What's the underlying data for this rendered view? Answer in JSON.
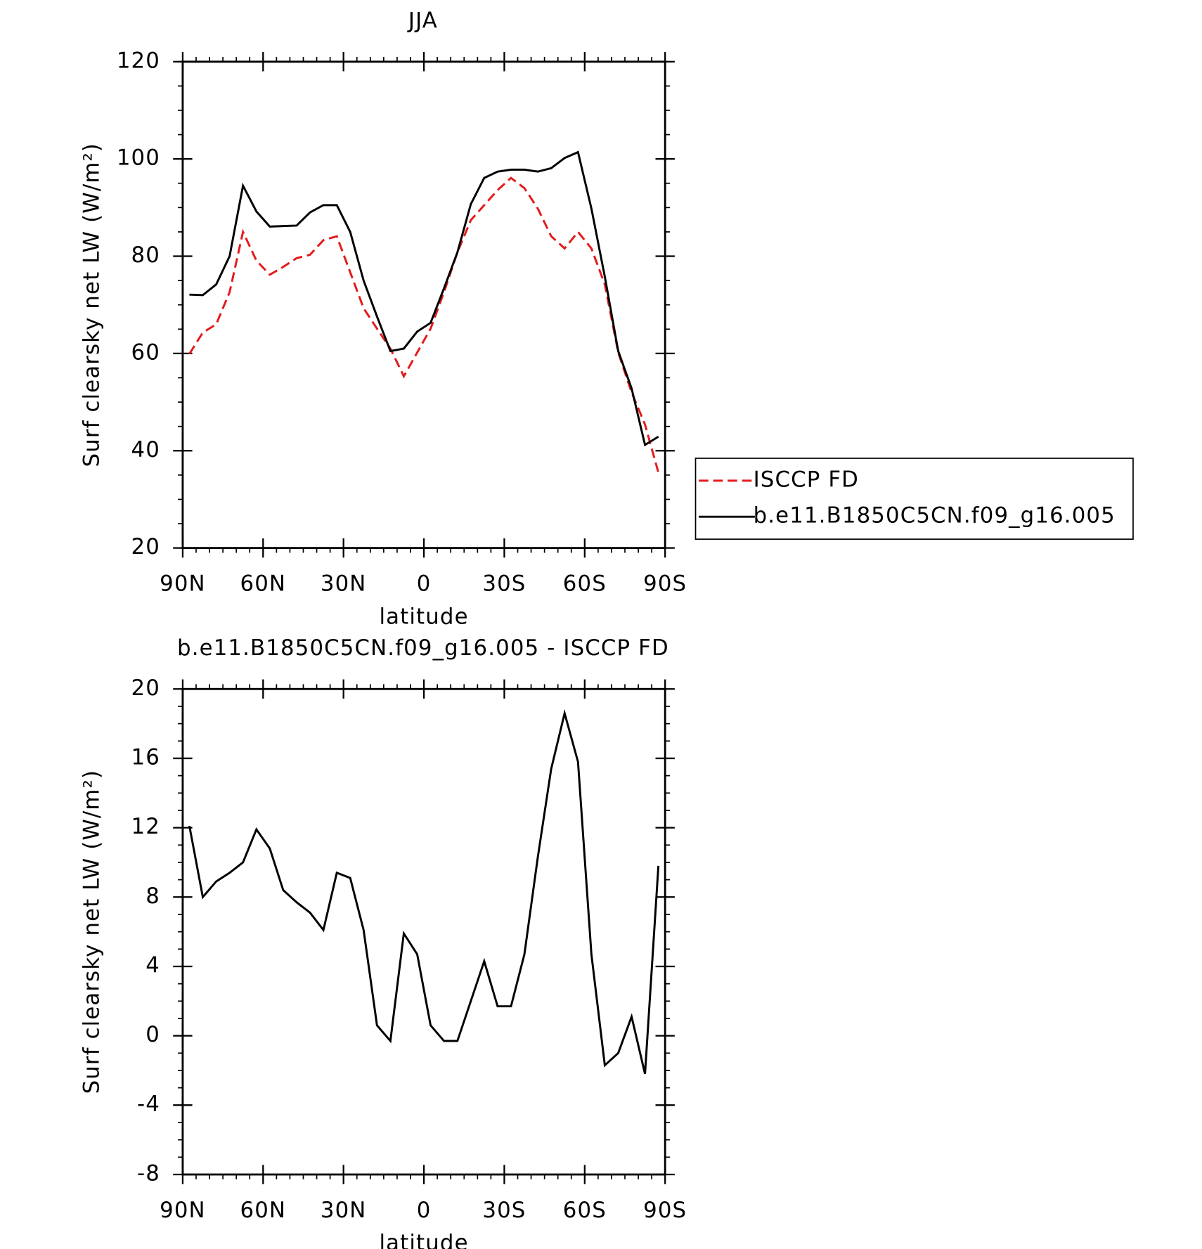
{
  "chart_data": [
    {
      "type": "line",
      "title": "JJA",
      "xlabel": "latitude",
      "ylabel": "Surf clearsky net LW (W/m²)",
      "x": [
        87.5,
        82.5,
        77.5,
        72.5,
        67.5,
        62.5,
        57.5,
        52.5,
        47.5,
        42.5,
        37.5,
        32.5,
        27.5,
        22.5,
        17.5,
        12.5,
        7.5,
        2.5,
        -2.5,
        -7.5,
        -12.5,
        -17.5,
        -22.5,
        -27.5,
        -32.5,
        -37.5,
        -42.5,
        -47.5,
        -52.5,
        -57.5,
        -62.5,
        -67.5,
        -72.5,
        -77.5,
        -82.5,
        -87.5
      ],
      "series": [
        {
          "name": "ISCCP FD",
          "color": "#e41a1c",
          "linestyle": "dashed",
          "values": [
            59.9,
            64.3,
            66,
            72.6,
            85,
            79.1,
            76.2,
            77.8,
            79.6,
            80.3,
            83.3,
            84.1,
            76.7,
            69.3,
            65.1,
            61,
            55.3,
            60.2,
            65.1,
            72.6,
            80.8,
            87.4,
            90.5,
            93.6,
            96.1,
            94,
            89.8,
            84.1,
            81.6,
            85,
            81.6,
            74.2,
            60.2,
            52,
            45.4,
            35.5
          ]
        },
        {
          "name": "b.e11.B1850C5CN.f09_g16.005",
          "color": "#000000",
          "linestyle": "solid",
          "values": [
            72.1,
            72,
            74.2,
            80,
            94.5,
            89.2,
            86.1,
            86.2,
            86.3,
            89,
            90.5,
            90.5,
            85,
            75,
            67.6,
            60.5,
            61,
            64.5,
            66.3,
            73.4,
            80.8,
            90.7,
            96.1,
            97.4,
            97.8,
            97.8,
            97.4,
            98.1,
            100.2,
            101.4,
            89.8,
            75.8,
            60.5,
            52.8,
            41.2,
            42.9
          ]
        }
      ],
      "xlim": [
        90,
        -90
      ],
      "xticks": [
        {
          "value": 90,
          "label": "90N"
        },
        {
          "value": 60,
          "label": "60N"
        },
        {
          "value": 30,
          "label": "30N"
        },
        0,
        {
          "value": -30,
          "label": "30S"
        },
        {
          "value": -60,
          "label": "60S"
        },
        {
          "value": -90,
          "label": "90S"
        }
      ],
      "ylim": [
        20,
        120
      ],
      "yticks": [
        20,
        40,
        60,
        80,
        100,
        120
      ],
      "legend": "right"
    },
    {
      "type": "line",
      "title": "b.e11.B1850C5CN.f09_g16.005 - ISCCP FD",
      "xlabel": "latitude",
      "ylabel": "Surf clearsky net LW (W/m²)",
      "x": [
        87.5,
        82.5,
        77.5,
        72.5,
        67.5,
        62.5,
        57.5,
        52.5,
        47.5,
        42.5,
        37.5,
        32.5,
        27.5,
        22.5,
        17.5,
        12.5,
        7.5,
        2.5,
        -2.5,
        -7.5,
        -12.5,
        -17.5,
        -22.5,
        -27.5,
        -32.5,
        -37.5,
        -42.5,
        -47.5,
        -52.5,
        -57.5,
        -62.5,
        -67.5,
        -72.5,
        -77.5,
        -82.5,
        -87.5
      ],
      "series": [
        {
          "color": "#000000",
          "linestyle": "solid",
          "values": [
            12.1,
            8,
            8.9,
            9.4,
            10,
            11.9,
            10.8,
            8.4,
            7.7,
            7.1,
            6.1,
            9.4,
            9.1,
            6.1,
            0.6,
            -0.3,
            5.9,
            4.7,
            0.6,
            -0.3,
            -0.3,
            2,
            4.3,
            1.7,
            1.7,
            4.7,
            10.3,
            15.4,
            18.6,
            15.8,
            4.7,
            -1.7,
            -1,
            1.1,
            -2.2,
            9.8
          ]
        }
      ],
      "xlim": [
        90,
        -90
      ],
      "xticks": [
        {
          "value": 90,
          "label": "90N"
        },
        {
          "value": 60,
          "label": "60N"
        },
        {
          "value": 30,
          "label": "30N"
        },
        0,
        {
          "value": -30,
          "label": "30S"
        },
        {
          "value": -60,
          "label": "60S"
        },
        {
          "value": -90,
          "label": "90S"
        }
      ],
      "ylim": [
        -8,
        20
      ],
      "yticks": [
        -8,
        -4,
        0,
        4,
        8,
        12,
        16,
        20
      ]
    }
  ]
}
